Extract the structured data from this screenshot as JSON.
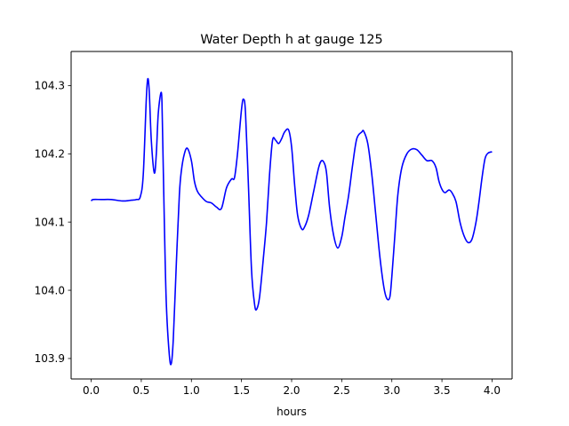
{
  "chart_data": {
    "type": "line",
    "title": "Water Depth h at gauge 125",
    "xlabel": "hours",
    "ylabel": "",
    "xlim": [
      -0.2,
      4.2
    ],
    "ylim": [
      103.87,
      104.35
    ],
    "xticks": [
      0.0,
      0.5,
      1.0,
      1.5,
      2.0,
      2.5,
      3.0,
      3.5,
      4.0
    ],
    "xtick_labels": [
      "0.0",
      "0.5",
      "1.0",
      "1.5",
      "2.0",
      "2.5",
      "3.0",
      "3.5",
      "4.0"
    ],
    "yticks": [
      103.9,
      104.0,
      104.1,
      104.2,
      104.3
    ],
    "ytick_labels": [
      "103.9",
      "104.0",
      "104.1",
      "104.2",
      "104.3"
    ],
    "grid": false,
    "series": [
      {
        "color": "#0000ff",
        "x": [
          0.0,
          0.02,
          0.1,
          0.2,
          0.3,
          0.35,
          0.4,
          0.45,
          0.49,
          0.52,
          0.55,
          0.565,
          0.58,
          0.6,
          0.63,
          0.65,
          0.67,
          0.7,
          0.71,
          0.73,
          0.75,
          0.78,
          0.8,
          0.82,
          0.85,
          0.88,
          0.9,
          0.93,
          0.96,
          1.0,
          1.03,
          1.06,
          1.1,
          1.15,
          1.2,
          1.25,
          1.3,
          1.35,
          1.4,
          1.43,
          1.46,
          1.5,
          1.52,
          1.54,
          1.57,
          1.6,
          1.63,
          1.65,
          1.68,
          1.72,
          1.75,
          1.78,
          1.81,
          1.84,
          1.87,
          1.9,
          1.93,
          1.97,
          2.0,
          2.03,
          2.06,
          2.1,
          2.13,
          2.17,
          2.22,
          2.27,
          2.3,
          2.33,
          2.35,
          2.38,
          2.42,
          2.46,
          2.5,
          2.53,
          2.57,
          2.61,
          2.65,
          2.7,
          2.72,
          2.76,
          2.8,
          2.84,
          2.88,
          2.92,
          2.95,
          2.98,
          3.0,
          3.03,
          3.06,
          3.1,
          3.15,
          3.2,
          3.25,
          3.3,
          3.35,
          3.4,
          3.44,
          3.47,
          3.5,
          3.53,
          3.57,
          3.6,
          3.64,
          3.68,
          3.72,
          3.76,
          3.8,
          3.84,
          3.87,
          3.9,
          3.93,
          3.96,
          4.0
        ],
        "y": [
          104.131,
          104.133,
          104.133,
          104.133,
          104.131,
          104.131,
          104.132,
          104.133,
          104.137,
          104.17,
          104.28,
          104.31,
          104.29,
          104.22,
          104.172,
          104.2,
          104.26,
          104.29,
          104.25,
          104.1,
          103.98,
          103.905,
          103.893,
          103.93,
          104.04,
          104.14,
          104.175,
          104.2,
          104.208,
          104.19,
          104.16,
          104.145,
          104.137,
          104.13,
          104.128,
          104.122,
          104.12,
          104.15,
          104.163,
          104.165,
          104.2,
          104.265,
          104.28,
          104.26,
          104.15,
          104.03,
          103.98,
          103.972,
          103.99,
          104.05,
          104.1,
          104.17,
          104.22,
          104.22,
          104.215,
          104.222,
          104.232,
          104.235,
          104.21,
          104.155,
          104.11,
          104.09,
          104.093,
          104.11,
          104.145,
          104.18,
          104.19,
          104.185,
          104.17,
          104.12,
          104.08,
          104.062,
          104.078,
          104.105,
          104.14,
          104.185,
          104.222,
          104.232,
          104.233,
          104.215,
          104.17,
          104.11,
          104.05,
          104.005,
          103.988,
          103.99,
          104.02,
          104.08,
          104.14,
          104.18,
          104.2,
          104.207,
          104.206,
          104.198,
          104.19,
          104.19,
          104.18,
          104.16,
          104.148,
          104.143,
          104.147,
          104.143,
          104.13,
          104.1,
          104.08,
          104.07,
          104.075,
          104.1,
          104.13,
          104.165,
          104.193,
          104.201,
          104.203
        ]
      }
    ]
  }
}
